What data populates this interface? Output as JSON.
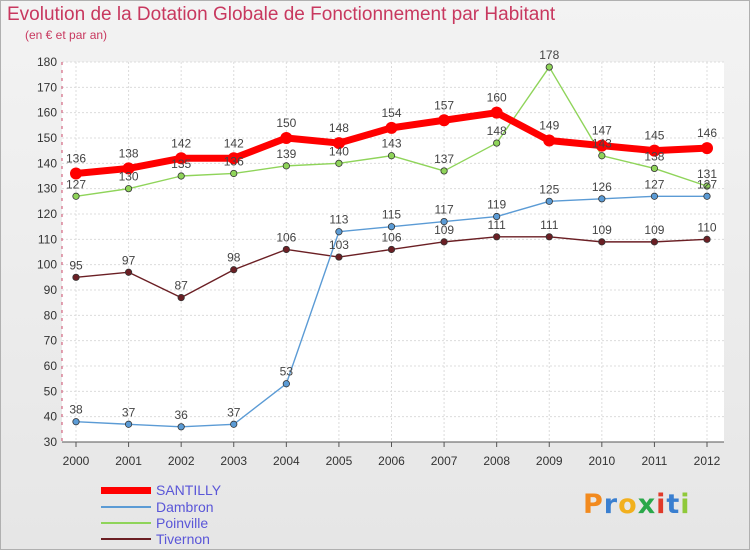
{
  "chart_data": {
    "type": "line",
    "title": "Evolution de la Dotation Globale de Fonctionnement par Habitant",
    "subtitle": "(en € et par an)",
    "categories": [
      "2000",
      "2001",
      "2002",
      "2003",
      "2004",
      "2005",
      "2006",
      "2007",
      "2008",
      "2009",
      "2010",
      "2011",
      "2012"
    ],
    "ylim": [
      30,
      180
    ],
    "yticks": [
      30,
      40,
      50,
      60,
      70,
      80,
      90,
      100,
      110,
      120,
      130,
      140,
      150,
      160,
      170,
      180
    ],
    "grid": true,
    "legend_position": "bottom-left",
    "series": [
      {
        "name": "Tivernon",
        "color": "#6b1f24",
        "values": [
          95,
          97,
          87,
          98,
          106,
          103,
          106,
          109,
          111,
          111,
          109,
          109,
          110
        ]
      },
      {
        "name": "Dambron",
        "color": "#5b9bd5",
        "values": [
          38,
          37,
          36,
          37,
          53,
          113,
          115,
          117,
          119,
          125,
          126,
          127,
          127
        ]
      },
      {
        "name": "Poinville",
        "color": "#8fd45a",
        "values": [
          127,
          130,
          135,
          136,
          139,
          140,
          143,
          137,
          148,
          178,
          143,
          138,
          131
        ]
      },
      {
        "name": "SANTILLY",
        "color": "#ff0000",
        "values": [
          136,
          138,
          142,
          142,
          150,
          148,
          154,
          157,
          160,
          149,
          147,
          145,
          146
        ]
      }
    ]
  },
  "legend": {
    "items": [
      "SANTILLY",
      "Dambron",
      "Poinville",
      "Tivernon"
    ]
  },
  "brand": {
    "letters": [
      "P",
      "r",
      "o",
      "x",
      "i",
      "t",
      "i"
    ],
    "colors": [
      "#f28a1e",
      "#3a7fd0",
      "#f2b01e",
      "#2aa84a",
      "#e03a2a",
      "#3a7fd0",
      "#8fc93a"
    ]
  }
}
